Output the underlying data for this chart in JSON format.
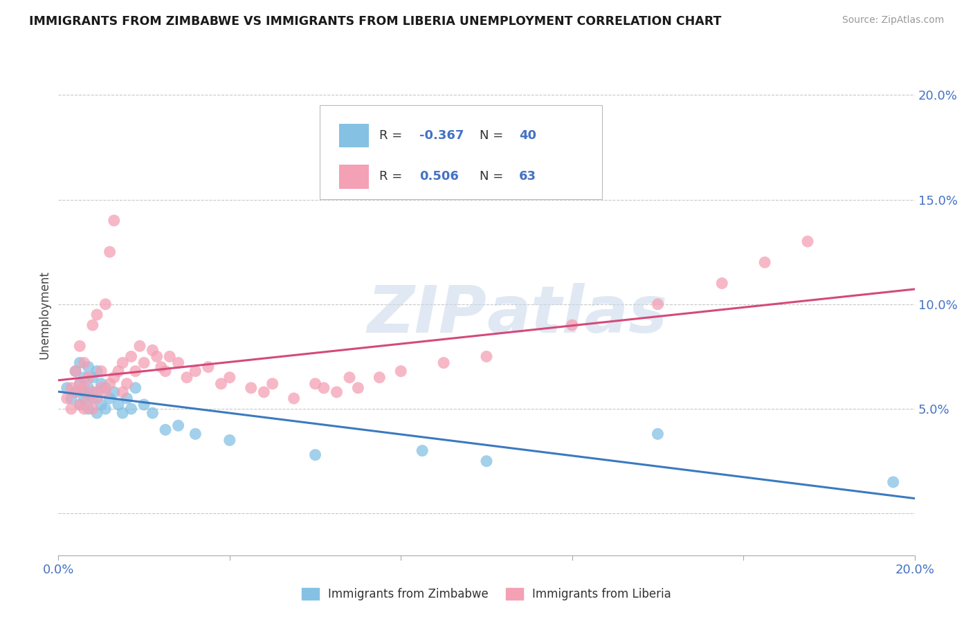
{
  "title": "IMMIGRANTS FROM ZIMBABWE VS IMMIGRANTS FROM LIBERIA UNEMPLOYMENT CORRELATION CHART",
  "source": "Source: ZipAtlas.com",
  "ylabel": "Unemployment",
  "xlabel": "",
  "xlim": [
    0.0,
    0.2
  ],
  "ylim": [
    -0.02,
    0.21
  ],
  "xticks": [
    0.0,
    0.04,
    0.08,
    0.12,
    0.16,
    0.2
  ],
  "yticks": [
    0.0,
    0.05,
    0.1,
    0.15,
    0.2
  ],
  "xtick_labels": [
    "0.0%",
    "",
    "",
    "",
    "",
    "20.0%"
  ],
  "ytick_labels_right": [
    "",
    "5.0%",
    "10.0%",
    "15.0%",
    "20.0%"
  ],
  "legend_label1": "Immigrants from Zimbabwe",
  "legend_label2": "Immigrants from Liberia",
  "R1": -0.367,
  "N1": 40,
  "R2": 0.506,
  "N2": 63,
  "color1": "#85c1e3",
  "color2": "#f4a0b5",
  "trend_color1": "#3a7abf",
  "trend_color2": "#d44a7a",
  "watermark": "ZIPatlas",
  "title_color": "#1a1a1a",
  "axis_label_color": "#4472c4",
  "background_color": "#ffffff",
  "grid_color": "#c8c8c8",
  "scatter1_x": [
    0.002,
    0.003,
    0.004,
    0.004,
    0.005,
    0.005,
    0.005,
    0.006,
    0.006,
    0.006,
    0.007,
    0.007,
    0.007,
    0.008,
    0.008,
    0.009,
    0.009,
    0.009,
    0.01,
    0.01,
    0.011,
    0.011,
    0.012,
    0.013,
    0.014,
    0.015,
    0.016,
    0.017,
    0.018,
    0.02,
    0.022,
    0.025,
    0.028,
    0.032,
    0.04,
    0.06,
    0.085,
    0.1,
    0.14,
    0.195
  ],
  "scatter1_y": [
    0.06,
    0.055,
    0.058,
    0.068,
    0.052,
    0.062,
    0.072,
    0.055,
    0.058,
    0.065,
    0.05,
    0.06,
    0.07,
    0.055,
    0.065,
    0.048,
    0.058,
    0.068,
    0.052,
    0.062,
    0.05,
    0.06,
    0.055,
    0.058,
    0.052,
    0.048,
    0.055,
    0.05,
    0.06,
    0.052,
    0.048,
    0.04,
    0.042,
    0.038,
    0.035,
    0.028,
    0.03,
    0.025,
    0.038,
    0.015
  ],
  "scatter2_x": [
    0.002,
    0.003,
    0.003,
    0.004,
    0.004,
    0.005,
    0.005,
    0.005,
    0.006,
    0.006,
    0.006,
    0.007,
    0.007,
    0.008,
    0.008,
    0.008,
    0.009,
    0.009,
    0.01,
    0.01,
    0.011,
    0.011,
    0.012,
    0.012,
    0.013,
    0.013,
    0.014,
    0.015,
    0.015,
    0.016,
    0.017,
    0.018,
    0.019,
    0.02,
    0.022,
    0.023,
    0.024,
    0.025,
    0.026,
    0.028,
    0.03,
    0.032,
    0.035,
    0.038,
    0.04,
    0.045,
    0.048,
    0.05,
    0.055,
    0.06,
    0.062,
    0.065,
    0.068,
    0.07,
    0.075,
    0.08,
    0.09,
    0.1,
    0.12,
    0.14,
    0.155,
    0.165,
    0.175
  ],
  "scatter2_y": [
    0.055,
    0.06,
    0.05,
    0.058,
    0.068,
    0.052,
    0.062,
    0.08,
    0.05,
    0.06,
    0.072,
    0.055,
    0.065,
    0.05,
    0.058,
    0.09,
    0.055,
    0.095,
    0.06,
    0.068,
    0.058,
    0.1,
    0.062,
    0.125,
    0.065,
    0.14,
    0.068,
    0.058,
    0.072,
    0.062,
    0.075,
    0.068,
    0.08,
    0.072,
    0.078,
    0.075,
    0.07,
    0.068,
    0.075,
    0.072,
    0.065,
    0.068,
    0.07,
    0.062,
    0.065,
    0.06,
    0.058,
    0.062,
    0.055,
    0.062,
    0.06,
    0.058,
    0.065,
    0.06,
    0.065,
    0.068,
    0.072,
    0.075,
    0.09,
    0.1,
    0.11,
    0.12,
    0.13
  ]
}
